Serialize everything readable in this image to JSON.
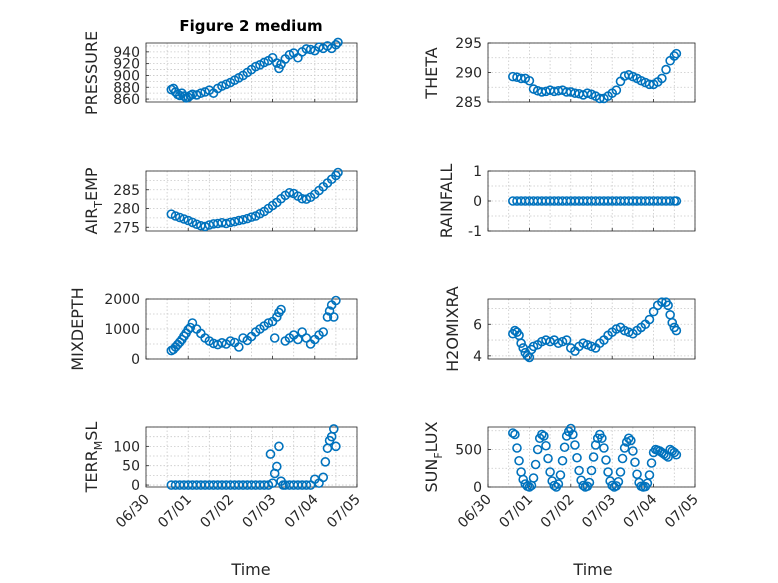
{
  "figure_title": "Figure 2 medium",
  "chart_data": [
    {
      "type": "scatter",
      "ylabel": "PRESSURE",
      "xlabel": "",
      "xlim": [
        0,
        5
      ],
      "ylim": [
        855,
        955
      ],
      "yticks": [
        860,
        880,
        900,
        920,
        940
      ],
      "x": [
        0.6,
        0.65,
        0.7,
        0.75,
        0.8,
        0.85,
        0.9,
        0.95,
        1.0,
        1.05,
        1.1,
        1.2,
        1.3,
        1.4,
        1.5,
        1.6,
        1.7,
        1.8,
        1.9,
        2.0,
        2.1,
        2.2,
        2.3,
        2.4,
        2.5,
        2.6,
        2.7,
        2.8,
        2.9,
        3.0,
        3.1,
        3.15,
        3.2,
        3.3,
        3.4,
        3.5,
        3.6,
        3.7,
        3.8,
        3.9,
        4.0,
        4.1,
        4.2,
        4.3,
        4.4,
        4.5,
        4.55
      ],
      "y": [
        876,
        878,
        872,
        868,
        866,
        870,
        865,
        862,
        863,
        866,
        868,
        867,
        870,
        872,
        875,
        870,
        878,
        882,
        885,
        888,
        892,
        896,
        900,
        905,
        910,
        915,
        918,
        922,
        925,
        930,
        921,
        912,
        919,
        928,
        935,
        938,
        930,
        940,
        945,
        944,
        942,
        948,
        946,
        950,
        946,
        952,
        956
      ]
    },
    {
      "type": "scatter",
      "ylabel": "THETA",
      "xlabel": "",
      "xlim": [
        0,
        5
      ],
      "ylim": [
        285,
        295
      ],
      "yticks": [
        285,
        290,
        295
      ],
      "x": [
        0.6,
        0.7,
        0.8,
        0.9,
        1.0,
        1.1,
        1.2,
        1.3,
        1.4,
        1.5,
        1.6,
        1.7,
        1.8,
        1.9,
        2.0,
        2.1,
        2.2,
        2.3,
        2.4,
        2.5,
        2.6,
        2.7,
        2.8,
        2.9,
        3.0,
        3.1,
        3.2,
        3.3,
        3.4,
        3.5,
        3.6,
        3.7,
        3.8,
        3.9,
        4.0,
        4.1,
        4.2,
        4.3,
        4.4,
        4.5,
        4.55
      ],
      "y": [
        289.3,
        289.2,
        289.0,
        289.0,
        288.6,
        287.2,
        286.9,
        286.7,
        286.8,
        287.0,
        286.8,
        286.9,
        287.0,
        286.7,
        286.7,
        286.5,
        286.4,
        286.2,
        286.5,
        286.3,
        286.0,
        285.6,
        285.6,
        286.0,
        286.5,
        287.0,
        288.5,
        289.4,
        289.6,
        289.3,
        289.0,
        288.6,
        288.3,
        288.0,
        288.0,
        288.4,
        289.0,
        290.5,
        292.0,
        292.8,
        293.2
      ]
    },
    {
      "type": "scatter",
      "ylabel": "AIR_TEMP",
      "xlabel": "",
      "xlim": [
        0,
        5
      ],
      "ylim": [
        274,
        290
      ],
      "yticks": [
        275,
        280,
        285
      ],
      "x": [
        0.6,
        0.7,
        0.8,
        0.9,
        1.0,
        1.1,
        1.2,
        1.3,
        1.4,
        1.5,
        1.6,
        1.7,
        1.8,
        1.9,
        2.0,
        2.1,
        2.2,
        2.3,
        2.4,
        2.5,
        2.6,
        2.7,
        2.8,
        2.9,
        3.0,
        3.1,
        3.2,
        3.3,
        3.4,
        3.5,
        3.6,
        3.7,
        3.8,
        3.9,
        4.0,
        4.1,
        4.2,
        4.3,
        4.4,
        4.5,
        4.55
      ],
      "y": [
        278.5,
        278.0,
        277.6,
        277.2,
        276.8,
        276.3,
        275.8,
        275.4,
        275.2,
        275.6,
        275.9,
        276.0,
        276.2,
        276.0,
        276.3,
        276.5,
        276.8,
        277.0,
        277.3,
        277.7,
        278.0,
        278.6,
        279.2,
        280.0,
        280.8,
        281.6,
        282.6,
        283.5,
        284.2,
        284.0,
        283.3,
        282.6,
        282.5,
        283.0,
        283.8,
        284.8,
        285.8,
        286.8,
        287.8,
        288.8,
        289.6
      ]
    },
    {
      "type": "scatter",
      "ylabel": "RAINFALL",
      "xlabel": "",
      "xlim": [
        0,
        5
      ],
      "ylim": [
        -1,
        1
      ],
      "yticks": [
        -1,
        0,
        1
      ],
      "x": [
        0.6,
        0.7,
        0.8,
        0.9,
        1.0,
        1.1,
        1.2,
        1.3,
        1.4,
        1.5,
        1.6,
        1.7,
        1.8,
        1.9,
        2.0,
        2.1,
        2.2,
        2.3,
        2.4,
        2.5,
        2.6,
        2.7,
        2.8,
        2.9,
        3.0,
        3.1,
        3.2,
        3.3,
        3.4,
        3.5,
        3.6,
        3.7,
        3.8,
        3.9,
        4.0,
        4.1,
        4.2,
        4.3,
        4.4,
        4.5,
        4.55
      ],
      "y": [
        0,
        0,
        0,
        0,
        0,
        0,
        0,
        0,
        0,
        0,
        0,
        0,
        0,
        0,
        0,
        0,
        0,
        0,
        0,
        0,
        0,
        0,
        0,
        0,
        0,
        0,
        0,
        0,
        0,
        0,
        0,
        0,
        0,
        0,
        0,
        0,
        0,
        0,
        0,
        0,
        0
      ]
    },
    {
      "type": "scatter",
      "ylabel": "MIXDEPTH",
      "xlabel": "",
      "xlim": [
        0,
        5
      ],
      "ylim": [
        0,
        2000
      ],
      "yticks": [
        0,
        1000,
        2000
      ],
      "x": [
        0.6,
        0.65,
        0.7,
        0.75,
        0.8,
        0.85,
        0.9,
        0.95,
        1.0,
        1.05,
        1.1,
        1.2,
        1.3,
        1.4,
        1.5,
        1.6,
        1.7,
        1.8,
        1.9,
        2.0,
        2.1,
        2.2,
        2.3,
        2.4,
        2.5,
        2.6,
        2.7,
        2.8,
        2.9,
        3.0,
        3.05,
        3.1,
        3.15,
        3.2,
        3.3,
        3.4,
        3.5,
        3.6,
        3.7,
        3.8,
        3.9,
        4.0,
        4.1,
        4.2,
        4.3,
        4.35,
        4.4,
        4.45,
        4.5
      ],
      "y": [
        280,
        320,
        400,
        480,
        560,
        650,
        760,
        860,
        980,
        1050,
        1200,
        1000,
        850,
        700,
        600,
        520,
        480,
        540,
        500,
        600,
        550,
        400,
        700,
        620,
        750,
        900,
        1000,
        1100,
        1200,
        1250,
        700,
        1400,
        1550,
        1650,
        600,
        700,
        800,
        650,
        900,
        700,
        500,
        650,
        800,
        900,
        1400,
        1600,
        1800,
        1400,
        1950
      ]
    },
    {
      "type": "scatter",
      "ylabel": "H2OMIXRA",
      "xlabel": "",
      "xlim": [
        0,
        5
      ],
      "ylim": [
        3.8,
        7.6
      ],
      "yticks": [
        4,
        6
      ],
      "x": [
        0.6,
        0.65,
        0.7,
        0.75,
        0.8,
        0.85,
        0.9,
        0.95,
        1.0,
        1.05,
        1.1,
        1.2,
        1.3,
        1.4,
        1.5,
        1.6,
        1.7,
        1.8,
        1.9,
        2.0,
        2.1,
        2.2,
        2.3,
        2.4,
        2.5,
        2.6,
        2.7,
        2.8,
        2.9,
        3.0,
        3.1,
        3.2,
        3.3,
        3.4,
        3.5,
        3.6,
        3.7,
        3.8,
        3.9,
        4.0,
        4.1,
        4.2,
        4.3,
        4.35,
        4.4,
        4.45,
        4.5,
        4.55
      ],
      "y": [
        5.4,
        5.6,
        5.5,
        5.3,
        4.8,
        4.5,
        4.2,
        4.0,
        3.9,
        4.4,
        4.6,
        4.7,
        4.9,
        5.0,
        4.9,
        5.0,
        4.8,
        4.9,
        5.0,
        4.5,
        4.3,
        4.6,
        4.8,
        4.7,
        4.6,
        4.5,
        4.8,
        5.0,
        5.3,
        5.5,
        5.7,
        5.8,
        5.6,
        5.5,
        5.4,
        5.6,
        5.8,
        6.0,
        6.3,
        6.8,
        7.2,
        7.4,
        7.4,
        7.2,
        6.6,
        6.1,
        5.8,
        5.6
      ]
    },
    {
      "type": "scatter",
      "ylabel": "TERR_MSL",
      "xlabel": "Time",
      "xlim": [
        0,
        5
      ],
      "ylim": [
        -5,
        150
      ],
      "yticks": [
        0,
        50,
        100
      ],
      "xticks": [
        0,
        1,
        2,
        3,
        4,
        5
      ],
      "xticklabels": [
        "06/30",
        "07/01",
        "07/02",
        "07/03",
        "07/04",
        "07/05"
      ],
      "x": [
        0.6,
        0.7,
        0.8,
        0.9,
        1.0,
        1.1,
        1.2,
        1.3,
        1.4,
        1.5,
        1.6,
        1.7,
        1.8,
        1.9,
        2.0,
        2.1,
        2.2,
        2.3,
        2.4,
        2.5,
        2.6,
        2.7,
        2.8,
        2.9,
        2.95,
        3.0,
        3.05,
        3.1,
        3.15,
        3.2,
        3.25,
        3.3,
        3.4,
        3.5,
        3.6,
        3.7,
        3.8,
        3.9,
        4.0,
        4.1,
        4.2,
        4.25,
        4.3,
        4.35,
        4.4,
        4.45,
        4.5
      ],
      "y": [
        0,
        0,
        0,
        0,
        0,
        0,
        0,
        0,
        0,
        0,
        0,
        0,
        0,
        0,
        0,
        0,
        0,
        0,
        0,
        0,
        0,
        0,
        0,
        0,
        80,
        5,
        30,
        48,
        100,
        10,
        0,
        0,
        0,
        0,
        0,
        0,
        0,
        0,
        15,
        5,
        20,
        60,
        95,
        115,
        125,
        145,
        100
      ]
    },
    {
      "type": "scatter",
      "ylabel": "SUN_FLUX",
      "xlabel": "Time",
      "xlim": [
        0,
        5
      ],
      "ylim": [
        0,
        800
      ],
      "yticks": [
        0,
        500
      ],
      "xticks": [
        0,
        1,
        2,
        3,
        4,
        5
      ],
      "xticklabels": [
        "06/30",
        "07/01",
        "07/02",
        "07/03",
        "07/04",
        "07/05"
      ],
      "x": [
        0.6,
        0.65,
        0.7,
        0.75,
        0.8,
        0.85,
        0.9,
        0.95,
        1.0,
        1.05,
        1.1,
        1.15,
        1.2,
        1.25,
        1.3,
        1.35,
        1.4,
        1.45,
        1.5,
        1.55,
        1.6,
        1.65,
        1.7,
        1.75,
        1.8,
        1.85,
        1.9,
        1.95,
        2.0,
        2.05,
        2.1,
        2.15,
        2.2,
        2.25,
        2.3,
        2.35,
        2.4,
        2.45,
        2.5,
        2.55,
        2.6,
        2.65,
        2.7,
        2.75,
        2.8,
        2.85,
        2.9,
        2.95,
        3.0,
        3.05,
        3.1,
        3.15,
        3.2,
        3.25,
        3.3,
        3.35,
        3.4,
        3.45,
        3.5,
        3.55,
        3.6,
        3.65,
        3.7,
        3.75,
        3.8,
        3.85,
        3.9,
        3.95,
        4.0,
        4.05,
        4.1,
        4.15,
        4.2,
        4.25,
        4.3,
        4.35,
        4.4,
        4.45,
        4.5,
        4.55
      ],
      "y": [
        720,
        700,
        520,
        350,
        200,
        100,
        40,
        10,
        0,
        20,
        120,
        300,
        500,
        650,
        700,
        680,
        550,
        380,
        200,
        80,
        20,
        0,
        40,
        160,
        350,
        530,
        680,
        740,
        780,
        700,
        560,
        390,
        220,
        90,
        20,
        0,
        10,
        60,
        220,
        400,
        560,
        650,
        700,
        650,
        520,
        360,
        200,
        80,
        20,
        0,
        15,
        70,
        200,
        380,
        520,
        600,
        650,
        620,
        480,
        330,
        170,
        60,
        10,
        0,
        5,
        50,
        160,
        320,
        460,
        500,
        490,
        480,
        460,
        440,
        420,
        400,
        500,
        480,
        460,
        430
      ]
    }
  ]
}
